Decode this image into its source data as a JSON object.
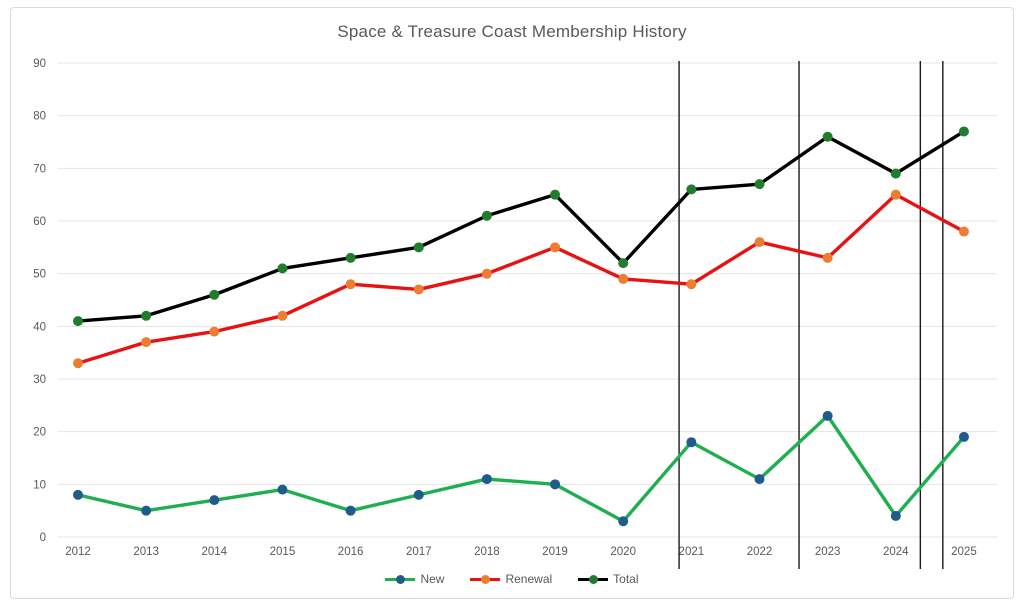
{
  "chart_data": {
    "type": "line",
    "title": "Space & Treasure Coast Membership History",
    "categories": [
      "2012",
      "2013",
      "2014",
      "2015",
      "2016",
      "2017",
      "2018",
      "2019",
      "2020",
      "2021",
      "2022",
      "2023",
      "2024",
      "2025"
    ],
    "series": [
      {
        "name": "New",
        "values": [
          8,
          5,
          7,
          9,
          5,
          8,
          11,
          10,
          3,
          18,
          11,
          23,
          4,
          19
        ],
        "line_color": "#1faf50",
        "marker_color": "#1f5c8b"
      },
      {
        "name": "Renewal",
        "values": [
          33,
          37,
          39,
          42,
          48,
          47,
          50,
          55,
          49,
          48,
          56,
          53,
          65,
          58
        ],
        "line_color": "#e81212",
        "marker_color": "#ed7d31"
      },
      {
        "name": "Total",
        "values": [
          41,
          42,
          46,
          51,
          53,
          55,
          61,
          65,
          52,
          66,
          67,
          76,
          69,
          77
        ],
        "line_color": "#000000",
        "marker_color": "#217d2d"
      }
    ],
    "ylim": [
      0,
      90
    ],
    "y_ticks": [
      0,
      10,
      20,
      30,
      40,
      50,
      60,
      70,
      80,
      90
    ],
    "grid": true,
    "legend_position": "bottom",
    "annotations": {
      "vertical_lines_at_category_index": [
        8.82,
        10.58,
        12.36,
        12.69
      ],
      "line_color": "#1a1a1a"
    }
  },
  "colors": {
    "background": "#ffffff",
    "frame_border": "#d9d9d9",
    "gridline": "#e4e4e4",
    "axis_text": "#595959",
    "title_text": "#595959"
  }
}
